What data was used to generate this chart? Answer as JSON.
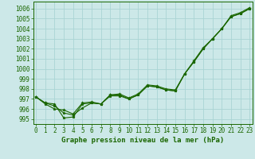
{
  "title": "Graphe pression niveau de la mer (hPa)",
  "x": [
    0,
    1,
    2,
    3,
    4,
    5,
    6,
    7,
    8,
    9,
    10,
    11,
    12,
    13,
    14,
    15,
    16,
    17,
    18,
    19,
    20,
    21,
    22,
    23
  ],
  "s1": [
    997.2,
    996.6,
    996.5,
    995.1,
    995.2,
    996.5,
    996.6,
    996.5,
    997.4,
    997.4,
    997.0,
    997.4,
    998.3,
    998.2,
    997.9,
    997.8,
    999.5,
    1000.7,
    1002.0,
    1003.0,
    1004.0,
    1005.2,
    1005.5,
    1006.0
  ],
  "s2": [
    997.2,
    996.6,
    996.3,
    995.6,
    995.4,
    996.1,
    996.6,
    996.5,
    997.3,
    997.3,
    997.0,
    997.4,
    998.3,
    998.2,
    997.9,
    997.8,
    999.5,
    1000.7,
    1002.0,
    1003.0,
    1004.0,
    1005.2,
    1005.5,
    1006.0
  ],
  "s3": [
    997.2,
    996.5,
    996.0,
    995.9,
    995.5,
    996.6,
    996.7,
    996.5,
    997.4,
    997.5,
    997.1,
    997.5,
    998.4,
    998.3,
    998.0,
    997.9,
    999.5,
    1000.8,
    1002.1,
    1003.0,
    1004.0,
    1005.3,
    1005.6,
    1006.1
  ],
  "ylim": [
    994.5,
    1006.7
  ],
  "yticks": [
    995,
    996,
    997,
    998,
    999,
    1000,
    1001,
    1002,
    1003,
    1004,
    1005,
    1006
  ],
  "xlim": [
    -0.3,
    23.3
  ],
  "line_color": "#1a6600",
  "bg_color": "#cce8e8",
  "grid_color": "#aad4d4",
  "marker": "*",
  "lw": 0.8,
  "ms": 2.5,
  "tick_fontsize": 5.5,
  "title_fontsize": 6.5
}
